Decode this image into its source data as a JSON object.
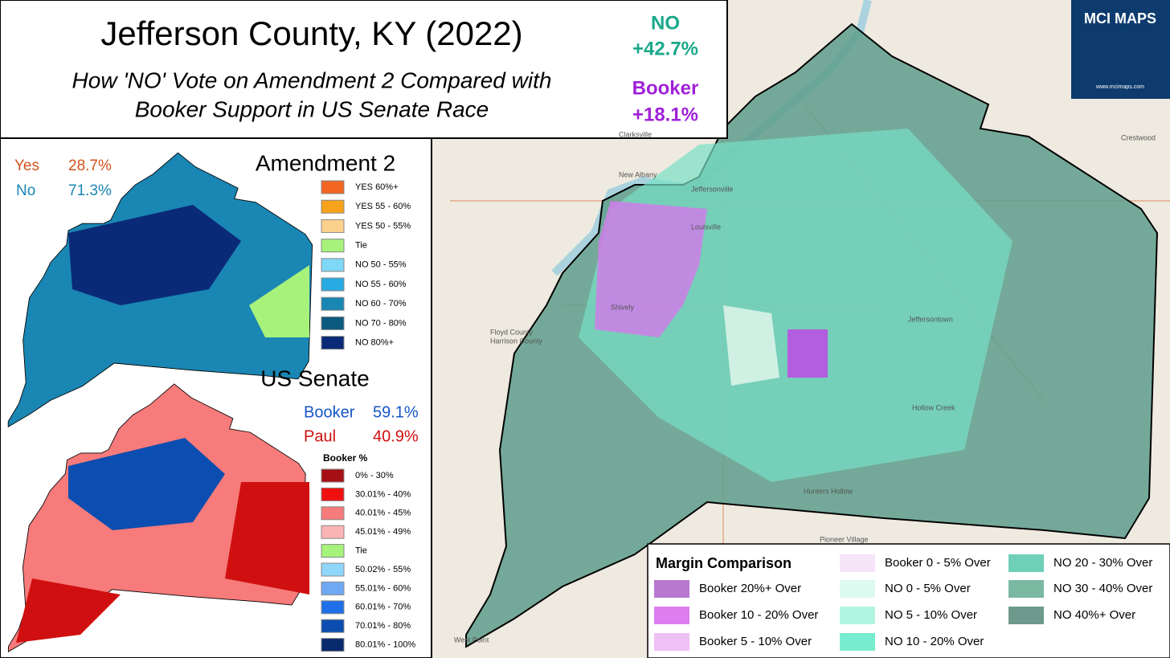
{
  "header": {
    "title": "Jefferson County, KY (2022)",
    "subtitle_line1": "How 'NO' Vote on Amendment 2 Compared with",
    "subtitle_line2": "Booker Support in US Senate Race",
    "no_label": "NO",
    "no_margin": "+42.7%",
    "booker_label": "Booker",
    "booker_margin": "+18.1%"
  },
  "logo": {
    "name": "MCI MAPS",
    "url": "www.mcimaps.com"
  },
  "amendment": {
    "title": "Amendment 2",
    "yes_label": "Yes",
    "yes_value": "28.7%",
    "no_label": "No",
    "no_value": "71.3%",
    "legend": [
      {
        "label": "YES 60%+",
        "color": "#f26522"
      },
      {
        "label": "YES 55 - 60%",
        "color": "#f7a21b"
      },
      {
        "label": "YES 50 - 55%",
        "color": "#fcd18c"
      },
      {
        "label": "Tie",
        "color": "#a6f27a"
      },
      {
        "label": "NO 50 - 55%",
        "color": "#7fd8f7"
      },
      {
        "label": "NO 55 - 60%",
        "color": "#27aae1"
      },
      {
        "label": "NO 60 - 70%",
        "color": "#1a86b3"
      },
      {
        "label": "NO 70 - 80%",
        "color": "#0c5a80"
      },
      {
        "label": "NO 80%+",
        "color": "#0a2a78"
      }
    ]
  },
  "senate": {
    "title": "US Senate",
    "booker_label": "Booker",
    "booker_value": "59.1%",
    "paul_label": "Paul",
    "paul_value": "40.9%",
    "legend_title": "Booker  %",
    "legend": [
      {
        "label": "0% - 30%",
        "color": "#a50f15"
      },
      {
        "label": "30.01% - 40%",
        "color": "#f01010"
      },
      {
        "label": "40.01% - 45%",
        "color": "#f77b7b"
      },
      {
        "label": "45.01% - 49%",
        "color": "#fbb4b4"
      },
      {
        "label": "Tie",
        "color": "#a6f27a"
      },
      {
        "label": "50.02% - 55%",
        "color": "#8fd6fb"
      },
      {
        "label": "55.01% - 60%",
        "color": "#6fa8f5"
      },
      {
        "label": "60.01% - 70%",
        "color": "#1f6fe8"
      },
      {
        "label": "70.01% - 80%",
        "color": "#0b4db0"
      },
      {
        "label": "80.01% - 100%",
        "color": "#0a2a6e"
      }
    ]
  },
  "margin": {
    "title": "Margin Comparison",
    "legend": [
      {
        "label": "Booker 20%+ Over",
        "color": "#b878d0"
      },
      {
        "label": "Booker 10 - 20% Over",
        "color": "#dd7ef0"
      },
      {
        "label": "Booker 5 - 10% Over",
        "color": "#efc0f5"
      },
      {
        "label": "Booker 0 - 5% Over",
        "color": "#f6e4f8"
      },
      {
        "label": "NO 0 - 5% Over",
        "color": "#dcfaef"
      },
      {
        "label": "NO 5 - 10% Over",
        "color": "#b0f5e2"
      },
      {
        "label": "NO 10 - 20% Over",
        "color": "#78ecd0"
      },
      {
        "label": "NO 20 - 30% Over",
        "color": "#6fd0b8"
      },
      {
        "label": "NO 30 - 40% Over",
        "color": "#7ab8a2"
      },
      {
        "label": "NO 40%+ Over",
        "color": "#6d9a8c"
      }
    ]
  },
  "places": [
    "Clarksville",
    "New Albany",
    "Jeffersonville",
    "Louisville",
    "Shively",
    "Jeffersontown",
    "Hollow Creek",
    "Hunters Hollow",
    "Pioneer Village",
    "West Point",
    "Crestwood",
    "Floyd County",
    "Harrison County"
  ]
}
